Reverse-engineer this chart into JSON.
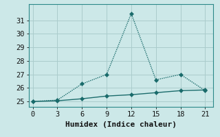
{
  "xlabel": "Humidex (Indice chaleur)",
  "background_color": "#cce8e8",
  "grid_color": "#aacccc",
  "line_color": "#1a6b6b",
  "x_line1": [
    0,
    3,
    6,
    9,
    12,
    15,
    18,
    21
  ],
  "y_line1": [
    25.0,
    25.1,
    26.3,
    27.0,
    31.5,
    26.6,
    27.0,
    25.8
  ],
  "x_line2": [
    0,
    3,
    6,
    9,
    12,
    15,
    18,
    21
  ],
  "y_line2": [
    25.0,
    25.05,
    25.2,
    25.4,
    25.5,
    25.65,
    25.8,
    25.85
  ],
  "xlim": [
    -0.5,
    22
  ],
  "ylim": [
    24.6,
    32.2
  ],
  "xticks": [
    0,
    3,
    6,
    9,
    12,
    15,
    18,
    21
  ],
  "yticks": [
    25,
    26,
    27,
    28,
    29,
    30,
    31
  ],
  "markersize": 3.0,
  "linewidth": 1.0,
  "xlabel_fontsize": 8,
  "tick_fontsize": 7.5
}
